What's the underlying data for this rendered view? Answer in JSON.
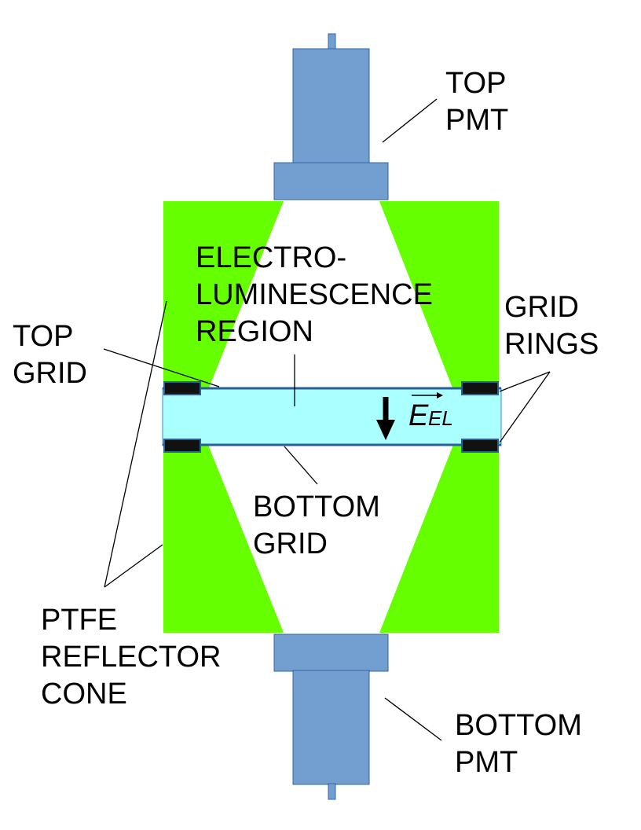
{
  "colors": {
    "pmt": "#729fcf",
    "pmt_stroke": "#3465a4",
    "ptfe": "#66ff00",
    "el_region": "#aaffff",
    "grid_line": "#2a6099",
    "ring": "#111111",
    "ring_border": "#2a6099"
  },
  "labels": {
    "top_pmt": [
      "TOP",
      "PMT"
    ],
    "bottom_pmt": [
      "BOTTOM",
      "PMT"
    ],
    "el_region": [
      "ELECTRO-",
      "LUMINESCENCE",
      "REGION"
    ],
    "grid_rings": [
      "GRID",
      "RINGS"
    ],
    "top_grid": [
      "TOP",
      "GRID"
    ],
    "bottom_grid": [
      "BOTTOM",
      "GRID"
    ],
    "ptfe": [
      "PTFE",
      "REFLECTOR",
      "CONE"
    ]
  },
  "field": {
    "symbol": "E",
    "subscript": "EL",
    "arrow_direction": "down"
  }
}
